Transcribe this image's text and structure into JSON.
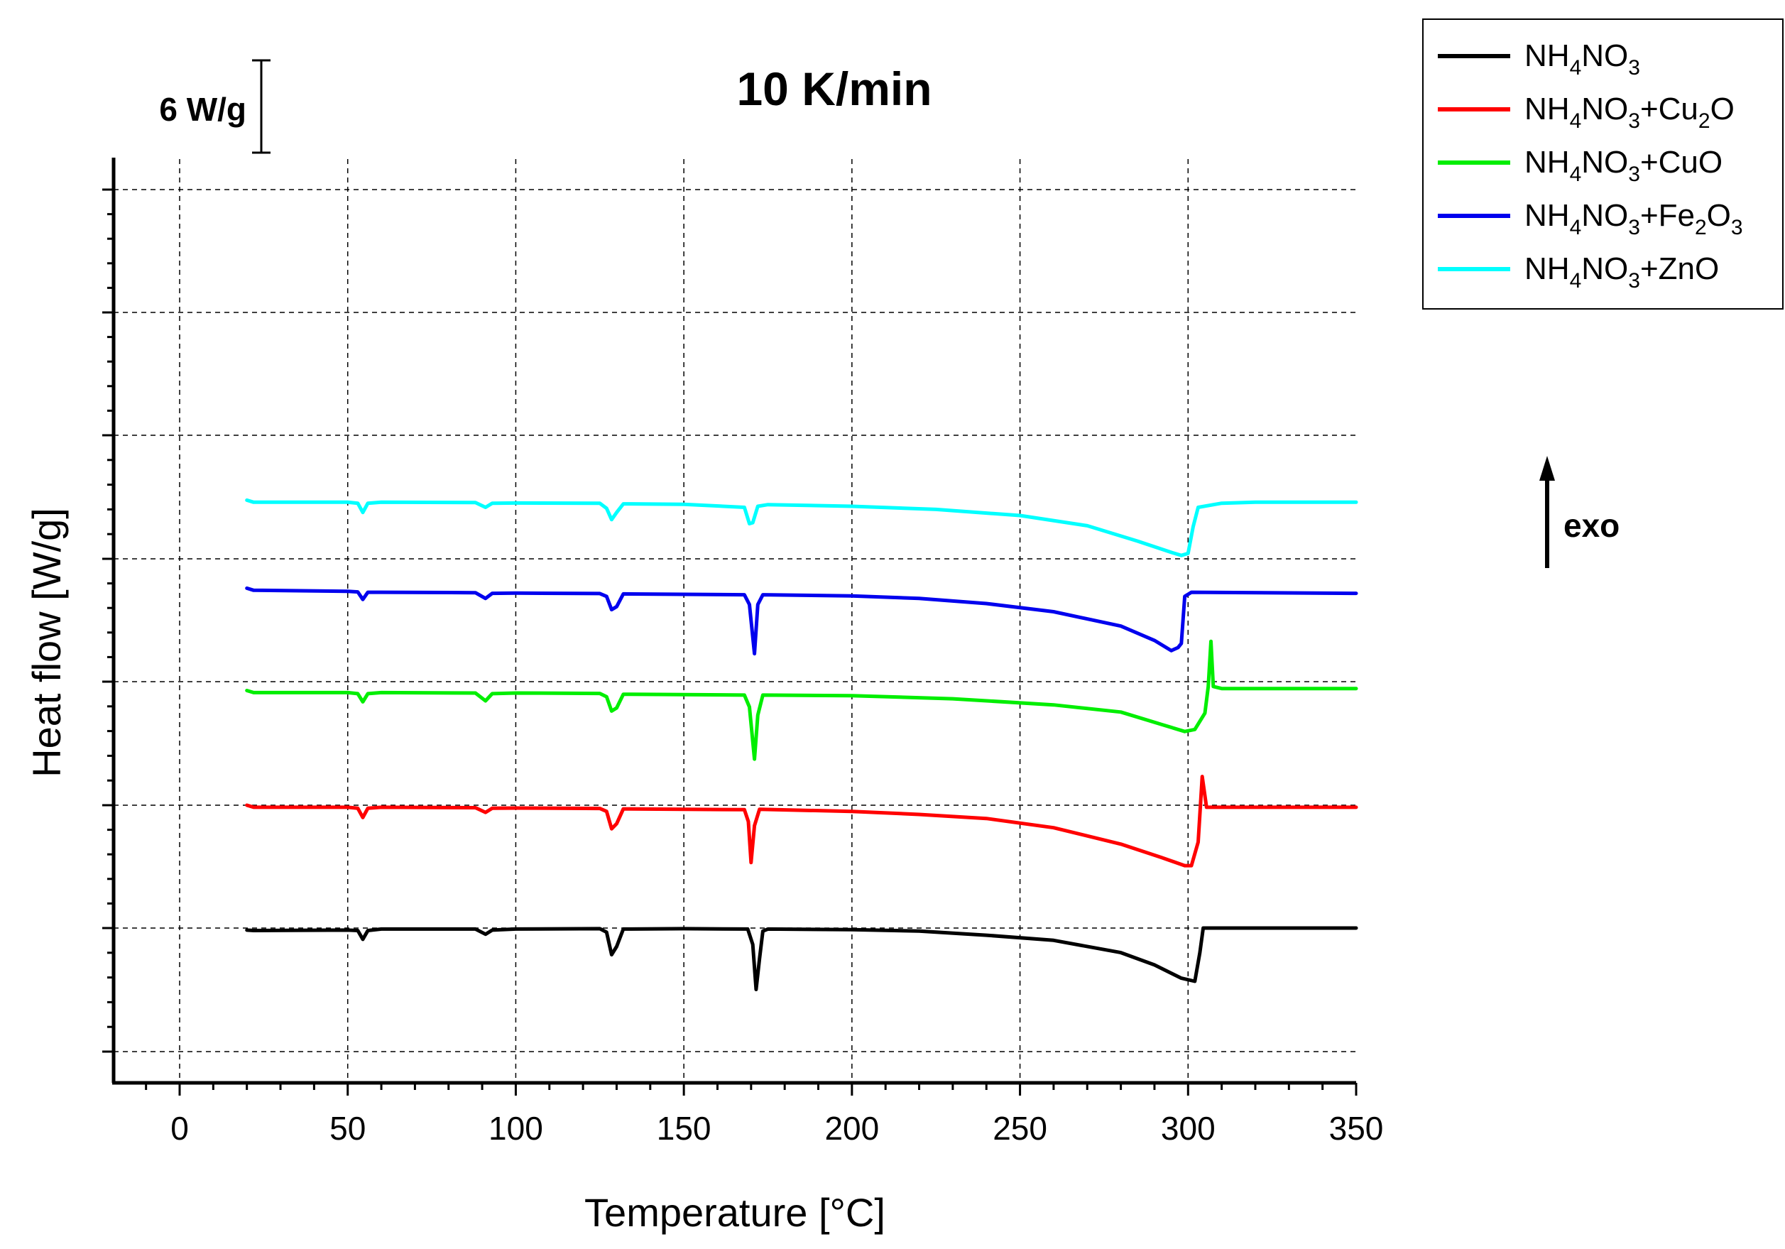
{
  "chart_data": {
    "type": "line",
    "title": "10 K/min",
    "xlabel": "Temperature [°C]",
    "ylabel": "Heat flow [W/g]",
    "xlim": [
      -20,
      350
    ],
    "x_ticks": [
      0,
      50,
      100,
      150,
      200,
      250,
      300,
      350
    ],
    "x_tick_labels": [
      "0",
      "50",
      "100",
      "150",
      "200",
      "250",
      "300",
      "350"
    ],
    "y_tick_labels_shown": false,
    "grid": "dashed",
    "scale_bar_label": "6 W/g",
    "scale_bar_value": 6,
    "exo_label": "exo",
    "exo_direction": "up",
    "legend_position": "top-right",
    "series": [
      {
        "name": "NH4NO3",
        "label_parts": [
          [
            "NH",
            "n"
          ],
          [
            "4",
            "s"
          ],
          [
            "NO",
            "n"
          ],
          [
            "3",
            "s"
          ]
        ],
        "color": "#000000",
        "points": [
          [
            20,
            -0.1
          ],
          [
            22,
            -0.12
          ],
          [
            50,
            -0.1
          ],
          [
            53,
            -0.12
          ],
          [
            54.5,
            -0.55
          ],
          [
            56,
            -0.12
          ],
          [
            60,
            -0.05
          ],
          [
            88,
            -0.05
          ],
          [
            91,
            -0.3
          ],
          [
            93,
            -0.1
          ],
          [
            100,
            -0.05
          ],
          [
            125,
            -0.03
          ],
          [
            127,
            -0.2
          ],
          [
            128.5,
            -1.3
          ],
          [
            130,
            -0.9
          ],
          [
            132,
            -0.05
          ],
          [
            150,
            -0.03
          ],
          [
            169,
            -0.05
          ],
          [
            170.5,
            -0.8
          ],
          [
            171.5,
            -3.0
          ],
          [
            172.5,
            -1.5
          ],
          [
            173.5,
            -0.15
          ],
          [
            175,
            -0.05
          ],
          [
            200,
            -0.08
          ],
          [
            220,
            -0.15
          ],
          [
            240,
            -0.35
          ],
          [
            260,
            -0.6
          ],
          [
            280,
            -1.2
          ],
          [
            290,
            -1.8
          ],
          [
            298,
            -2.45
          ],
          [
            302,
            -2.6
          ],
          [
            303.5,
            -1.2
          ],
          [
            304.5,
            0.0
          ],
          [
            310,
            0.0
          ],
          [
            350,
            0.0
          ]
        ]
      },
      {
        "name": "NH4NO3+Cu2O",
        "label_parts": [
          [
            "NH",
            "n"
          ],
          [
            "4",
            "s"
          ],
          [
            "NO",
            "n"
          ],
          [
            "3",
            "s"
          ],
          [
            "+Cu",
            "n"
          ],
          [
            "2",
            "s"
          ],
          [
            "O",
            "n"
          ]
        ],
        "color": "#ff0000",
        "points": [
          [
            20,
            6.0
          ],
          [
            22,
            5.9
          ],
          [
            50,
            5.9
          ],
          [
            53,
            5.85
          ],
          [
            54.5,
            5.4
          ],
          [
            56,
            5.85
          ],
          [
            60,
            5.9
          ],
          [
            88,
            5.88
          ],
          [
            91,
            5.65
          ],
          [
            93,
            5.85
          ],
          [
            100,
            5.86
          ],
          [
            125,
            5.84
          ],
          [
            127,
            5.7
          ],
          [
            128.5,
            4.85
          ],
          [
            130,
            5.1
          ],
          [
            132,
            5.82
          ],
          [
            150,
            5.8
          ],
          [
            168,
            5.78
          ],
          [
            169.2,
            5.2
          ],
          [
            170,
            3.2
          ],
          [
            171,
            5.0
          ],
          [
            172.5,
            5.8
          ],
          [
            200,
            5.7
          ],
          [
            220,
            5.55
          ],
          [
            240,
            5.35
          ],
          [
            260,
            4.9
          ],
          [
            280,
            4.1
          ],
          [
            292,
            3.45
          ],
          [
            299,
            3.05
          ],
          [
            301,
            3.05
          ],
          [
            303,
            4.2
          ],
          [
            304.2,
            7.4
          ],
          [
            305.5,
            5.9
          ],
          [
            308,
            5.9
          ],
          [
            350,
            5.9
          ]
        ]
      },
      {
        "name": "NH4NO3+CuO",
        "label_parts": [
          [
            "NH",
            "n"
          ],
          [
            "4",
            "s"
          ],
          [
            "NO",
            "n"
          ],
          [
            "3",
            "s"
          ],
          [
            "+CuO",
            "n"
          ]
        ],
        "color": "#00ee00",
        "points": [
          [
            20,
            11.6
          ],
          [
            22,
            11.5
          ],
          [
            50,
            11.5
          ],
          [
            53,
            11.45
          ],
          [
            54.5,
            11.05
          ],
          [
            56,
            11.45
          ],
          [
            60,
            11.5
          ],
          [
            88,
            11.48
          ],
          [
            91,
            11.1
          ],
          [
            93,
            11.45
          ],
          [
            100,
            11.48
          ],
          [
            125,
            11.46
          ],
          [
            127,
            11.3
          ],
          [
            128.5,
            10.6
          ],
          [
            130,
            10.75
          ],
          [
            132,
            11.42
          ],
          [
            150,
            11.4
          ],
          [
            168,
            11.38
          ],
          [
            169.5,
            10.8
          ],
          [
            171,
            8.25
          ],
          [
            172,
            10.4
          ],
          [
            173.5,
            11.38
          ],
          [
            200,
            11.35
          ],
          [
            230,
            11.2
          ],
          [
            260,
            10.9
          ],
          [
            280,
            10.55
          ],
          [
            292,
            9.95
          ],
          [
            299,
            9.6
          ],
          [
            302,
            9.7
          ],
          [
            305,
            10.5
          ],
          [
            306,
            11.8
          ],
          [
            306.8,
            14.0
          ],
          [
            307.5,
            11.8
          ],
          [
            310,
            11.7
          ],
          [
            350,
            11.7
          ]
        ]
      },
      {
        "name": "NH4NO3+Fe2O3",
        "label_parts": [
          [
            "NH",
            "n"
          ],
          [
            "4",
            "s"
          ],
          [
            "NO",
            "n"
          ],
          [
            "3",
            "s"
          ],
          [
            "+Fe",
            "n"
          ],
          [
            "2",
            "s"
          ],
          [
            "O",
            "n"
          ],
          [
            "3",
            "s"
          ]
        ],
        "color": "#0000ee",
        "points": [
          [
            20,
            16.6
          ],
          [
            22,
            16.5
          ],
          [
            50,
            16.45
          ],
          [
            53,
            16.42
          ],
          [
            54.5,
            16.05
          ],
          [
            56,
            16.4
          ],
          [
            60,
            16.4
          ],
          [
            88,
            16.38
          ],
          [
            91,
            16.1
          ],
          [
            93,
            16.35
          ],
          [
            100,
            16.36
          ],
          [
            125,
            16.34
          ],
          [
            127,
            16.2
          ],
          [
            128.5,
            15.55
          ],
          [
            130,
            15.7
          ],
          [
            132,
            16.32
          ],
          [
            150,
            16.3
          ],
          [
            168,
            16.28
          ],
          [
            169.5,
            15.8
          ],
          [
            171,
            13.4
          ],
          [
            172,
            15.8
          ],
          [
            173.5,
            16.28
          ],
          [
            200,
            16.22
          ],
          [
            220,
            16.1
          ],
          [
            240,
            15.85
          ],
          [
            260,
            15.45
          ],
          [
            280,
            14.75
          ],
          [
            290,
            14.05
          ],
          [
            295,
            13.55
          ],
          [
            297,
            13.7
          ],
          [
            298,
            13.9
          ],
          [
            299,
            16.2
          ],
          [
            301,
            16.4
          ],
          [
            350,
            16.35
          ]
        ]
      },
      {
        "name": "NH4NO3+ZnO",
        "label_parts": [
          [
            "NH",
            "n"
          ],
          [
            "4",
            "s"
          ],
          [
            "NO",
            "n"
          ],
          [
            "3",
            "s"
          ],
          [
            "+ZnO",
            "n"
          ]
        ],
        "color": "#00ffff",
        "points": [
          [
            20,
            20.9
          ],
          [
            22,
            20.8
          ],
          [
            50,
            20.8
          ],
          [
            53,
            20.75
          ],
          [
            54.5,
            20.3
          ],
          [
            56,
            20.75
          ],
          [
            60,
            20.8
          ],
          [
            88,
            20.78
          ],
          [
            91,
            20.55
          ],
          [
            93,
            20.75
          ],
          [
            100,
            20.76
          ],
          [
            125,
            20.75
          ],
          [
            127,
            20.5
          ],
          [
            128.5,
            19.95
          ],
          [
            130,
            20.3
          ],
          [
            132,
            20.72
          ],
          [
            150,
            20.7
          ],
          [
            168,
            20.55
          ],
          [
            169.5,
            19.75
          ],
          [
            170.5,
            19.8
          ],
          [
            172,
            20.6
          ],
          [
            175,
            20.68
          ],
          [
            200,
            20.6
          ],
          [
            225,
            20.45
          ],
          [
            250,
            20.15
          ],
          [
            270,
            19.65
          ],
          [
            285,
            18.9
          ],
          [
            295,
            18.35
          ],
          [
            298,
            18.2
          ],
          [
            300,
            18.3
          ],
          [
            301.5,
            19.6
          ],
          [
            303,
            20.55
          ],
          [
            310,
            20.75
          ],
          [
            320,
            20.8
          ],
          [
            350,
            20.8
          ]
        ]
      }
    ]
  }
}
